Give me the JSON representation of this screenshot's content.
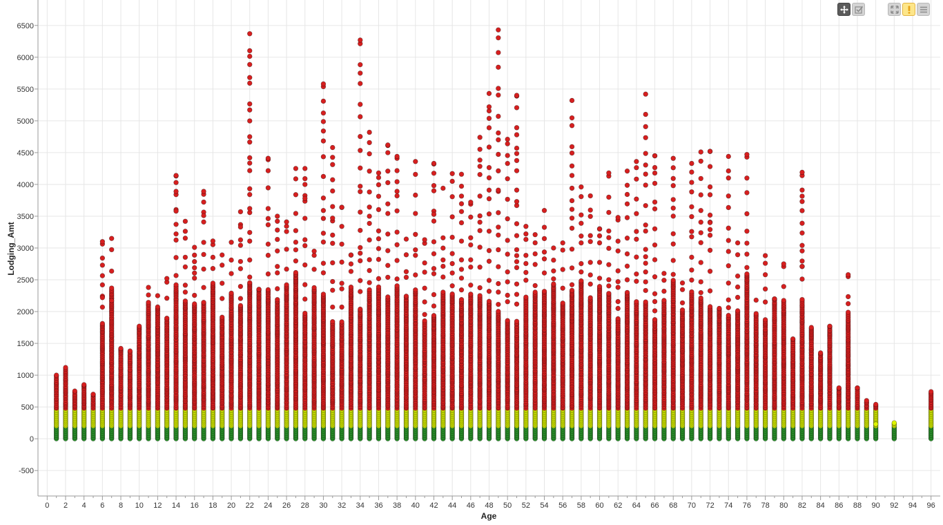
{
  "toolbar": {
    "buttons": [
      {
        "name": "pan-button",
        "icon": "move-icon"
      },
      {
        "name": "select-button",
        "icon": "select-check-icon"
      },
      {
        "name": "fit-button",
        "icon": "expand-icon"
      },
      {
        "name": "warning-button",
        "icon": "warning-icon"
      },
      {
        "name": "menu-button",
        "icon": "menu-icon"
      }
    ]
  },
  "chart_data": {
    "type": "scatter",
    "xlabel": "Age",
    "ylabel": "Lodging_Amt",
    "xlim": [
      -1,
      97
    ],
    "ylim": [
      -900,
      6900
    ],
    "x_ticks": [
      0,
      2,
      4,
      6,
      8,
      10,
      12,
      14,
      16,
      18,
      20,
      22,
      24,
      26,
      28,
      30,
      32,
      34,
      36,
      38,
      40,
      42,
      44,
      46,
      48,
      50,
      52,
      54,
      56,
      58,
      60,
      62,
      64,
      66,
      68,
      70,
      72,
      74,
      76,
      78,
      80,
      82,
      84,
      86,
      88,
      90,
      92,
      94,
      96
    ],
    "y_ticks": [
      -500,
      0,
      500,
      1000,
      1500,
      2000,
      2500,
      3000,
      3500,
      4000,
      4500,
      5000,
      5500,
      6000,
      6500
    ],
    "grid": true,
    "color_bands": [
      {
        "max": 200,
        "color": "#2e9e2e"
      },
      {
        "max": 470,
        "color": "#ddf500"
      },
      {
        "max": 7000,
        "color": "#d61f1f"
      }
    ],
    "x_ages": [
      1,
      2,
      3,
      4,
      5,
      6,
      7,
      8,
      9,
      10,
      11,
      12,
      13,
      14,
      15,
      16,
      17,
      18,
      19,
      20,
      21,
      22,
      23,
      24,
      25,
      26,
      27,
      28,
      29,
      30,
      31,
      32,
      33,
      34,
      35,
      36,
      37,
      38,
      39,
      40,
      41,
      42,
      43,
      44,
      45,
      46,
      47,
      48,
      49,
      50,
      51,
      52,
      53,
      54,
      55,
      56,
      57,
      58,
      59,
      60,
      61,
      62,
      63,
      64,
      65,
      66,
      67,
      68,
      69,
      70,
      71,
      72,
      73,
      74,
      75,
      76,
      77,
      78,
      79,
      80,
      81,
      82,
      83,
      84,
      85,
      86,
      87,
      88,
      89,
      90,
      92,
      96
    ],
    "column_max": [
      1000,
      1120,
      750,
      850,
      700,
      3100,
      3150,
      1420,
      1380,
      1770,
      2380,
      2250,
      2520,
      4140,
      3420,
      3010,
      3890,
      3110,
      2890,
      3090,
      3570,
      6370,
      2350,
      4410,
      3500,
      3410,
      4250,
      4250,
      2950,
      5580,
      4580,
      3640,
      2890,
      6270,
      4820,
      4180,
      4620,
      4440,
      3140,
      4360,
      3130,
      4330,
      3160,
      4170,
      4160,
      3720,
      4740,
      5430,
      6430,
      4710,
      5400,
      3340,
      3210,
      3590,
      3000,
      3080,
      5320,
      3960,
      3820,
      3300,
      4180,
      3480,
      4210,
      4360,
      5420,
      4450,
      2600,
      4410,
      2450,
      4330,
      4510,
      4520,
      2050,
      4440,
      3080,
      4470,
      2180,
      2880,
      2200,
      2750,
      1570,
      4190,
      1750,
      1350,
      1770,
      800,
      2580,
      800,
      600,
      540,
      250,
      740
    ],
    "outliers": [
      {
        "x": 6,
        "y": 2220
      },
      {
        "x": 7,
        "y": 2170
      },
      {
        "x": 14,
        "y": 3890
      },
      {
        "x": 14,
        "y": 3580
      },
      {
        "x": 17,
        "y": 3510
      },
      {
        "x": 21,
        "y": 3330
      },
      {
        "x": 22,
        "y": 3620
      },
      {
        "x": 28,
        "y": 3780
      },
      {
        "x": 31,
        "y": 3470
      },
      {
        "x": 35,
        "y": 3500
      },
      {
        "x": 38,
        "y": 3820
      },
      {
        "x": 42,
        "y": 3530
      },
      {
        "x": 43,
        "y": 3940
      },
      {
        "x": 48,
        "y": 5220
      },
      {
        "x": 48,
        "y": 3910
      },
      {
        "x": 49,
        "y": 3910
      },
      {
        "x": 51,
        "y": 4570
      },
      {
        "x": 51,
        "y": 3730
      },
      {
        "x": 60,
        "y": 3300
      },
      {
        "x": 71,
        "y": 3240
      },
      {
        "x": 72,
        "y": 3400
      },
      {
        "x": 78,
        "y": 2760
      },
      {
        "x": 82,
        "y": 2710
      },
      {
        "x": 90,
        "y": 230
      }
    ]
  }
}
